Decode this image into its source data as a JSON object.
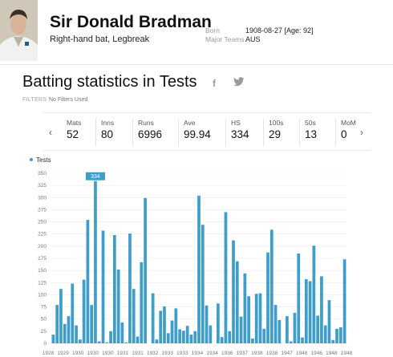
{
  "player": {
    "name": "Sir Donald Bradman",
    "style": "Right-hand bat, Legbreak",
    "born_label": "Born",
    "born_value": "1908-08-27 [Age: 92]",
    "teams_label": "Major Teams",
    "teams_value": "AUS"
  },
  "section": {
    "title": "Batting statistics in Tests",
    "filters_label": "FILTERS",
    "filters_value": "No Filters Used",
    "share_icons": [
      "facebook-icon",
      "twitter-icon"
    ]
  },
  "stats": [
    {
      "label": "Mats",
      "value": "52"
    },
    {
      "label": "Inns",
      "value": "80"
    },
    {
      "label": "Runs",
      "value": "6996"
    },
    {
      "label": "Ave",
      "value": "99.94"
    },
    {
      "label": "HS",
      "value": "334"
    },
    {
      "label": "100s",
      "value": "29"
    },
    {
      "label": "50s",
      "value": "13"
    },
    {
      "label": "MoM",
      "value": "0"
    }
  ],
  "nav": {
    "prev": "‹",
    "next": "›"
  },
  "chart_data": {
    "type": "bar",
    "legend": [
      "Tests"
    ],
    "series": [
      {
        "name": "Tests",
        "values": [
          18,
          79,
          112,
          40,
          56,
          123,
          37,
          8,
          131,
          254,
          79,
          334,
          4,
          232,
          2,
          25,
          223,
          152,
          43,
          2,
          226,
          112,
          14,
          167,
          299,
          0,
          103,
          8,
          67,
          76,
          21,
          47,
          72,
          29,
          26,
          36,
          18,
          25,
          304,
          244,
          78,
          37,
          0,
          82,
          13,
          270,
          25,
          212,
          169,
          55,
          144,
          97,
          10,
          102,
          103,
          30,
          187,
          234,
          79,
          48,
          0,
          56,
          4,
          63,
          185,
          12,
          132,
          128,
          201,
          57,
          138,
          37,
          89,
          7,
          30,
          33,
          173
        ],
        "colors": {
          "bar": "#3e9ec9"
        }
      }
    ],
    "xticks": [
      "1928",
      "1929",
      "1930",
      "1930",
      "1930",
      "1931",
      "1931",
      "1932",
      "1933",
      "1933",
      "1934",
      "1934",
      "1936",
      "1937",
      "1938",
      "1938",
      "1947",
      "1948",
      "1946",
      "1948",
      "1948"
    ],
    "yticks": [
      0,
      25,
      50,
      75,
      100,
      125,
      150,
      175,
      200,
      225,
      250,
      275,
      300,
      325,
      350
    ],
    "ylim": [
      0,
      350
    ],
    "annotation": {
      "text": "334",
      "value": 334
    },
    "grid": true,
    "legend_position": "top-left"
  }
}
